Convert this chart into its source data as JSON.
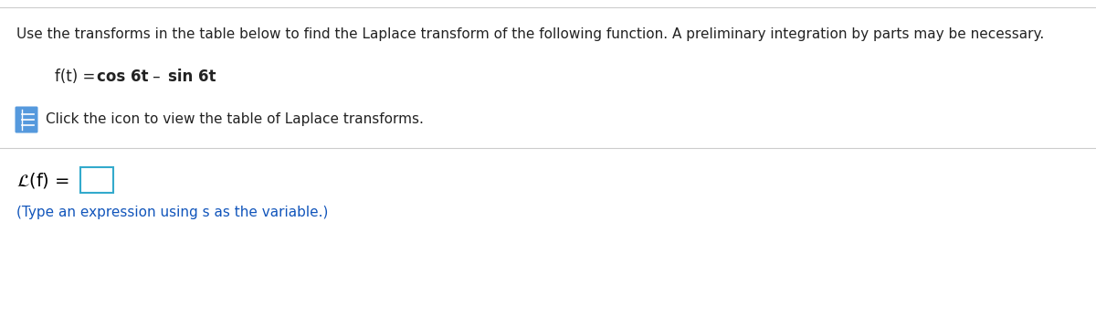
{
  "bg_color": "#ffffff",
  "line_color": "#cccccc",
  "header_text": "Use the transforms in the table below to find the Laplace transform of the following function. A preliminary integration by parts may be necessary.",
  "header_fontsize": 11,
  "header_color": "#222222",
  "func_prefix": "f(t) = ",
  "func_bold": "cos 6t –  sin 6t",
  "func_fontsize": 12,
  "icon_bg": "#5599dd",
  "icon_line_color": "#ffffff",
  "click_text": "Click the icon to view the table of Laplace transforms.",
  "click_fontsize": 11,
  "click_color": "#222222",
  "laplace_fontsize": 14,
  "laplace_color": "#000000",
  "box_border_color": "#33aacc",
  "hint_text": "(Type an expression using s as the variable.)",
  "hint_fontsize": 11,
  "hint_color": "#1155bb"
}
